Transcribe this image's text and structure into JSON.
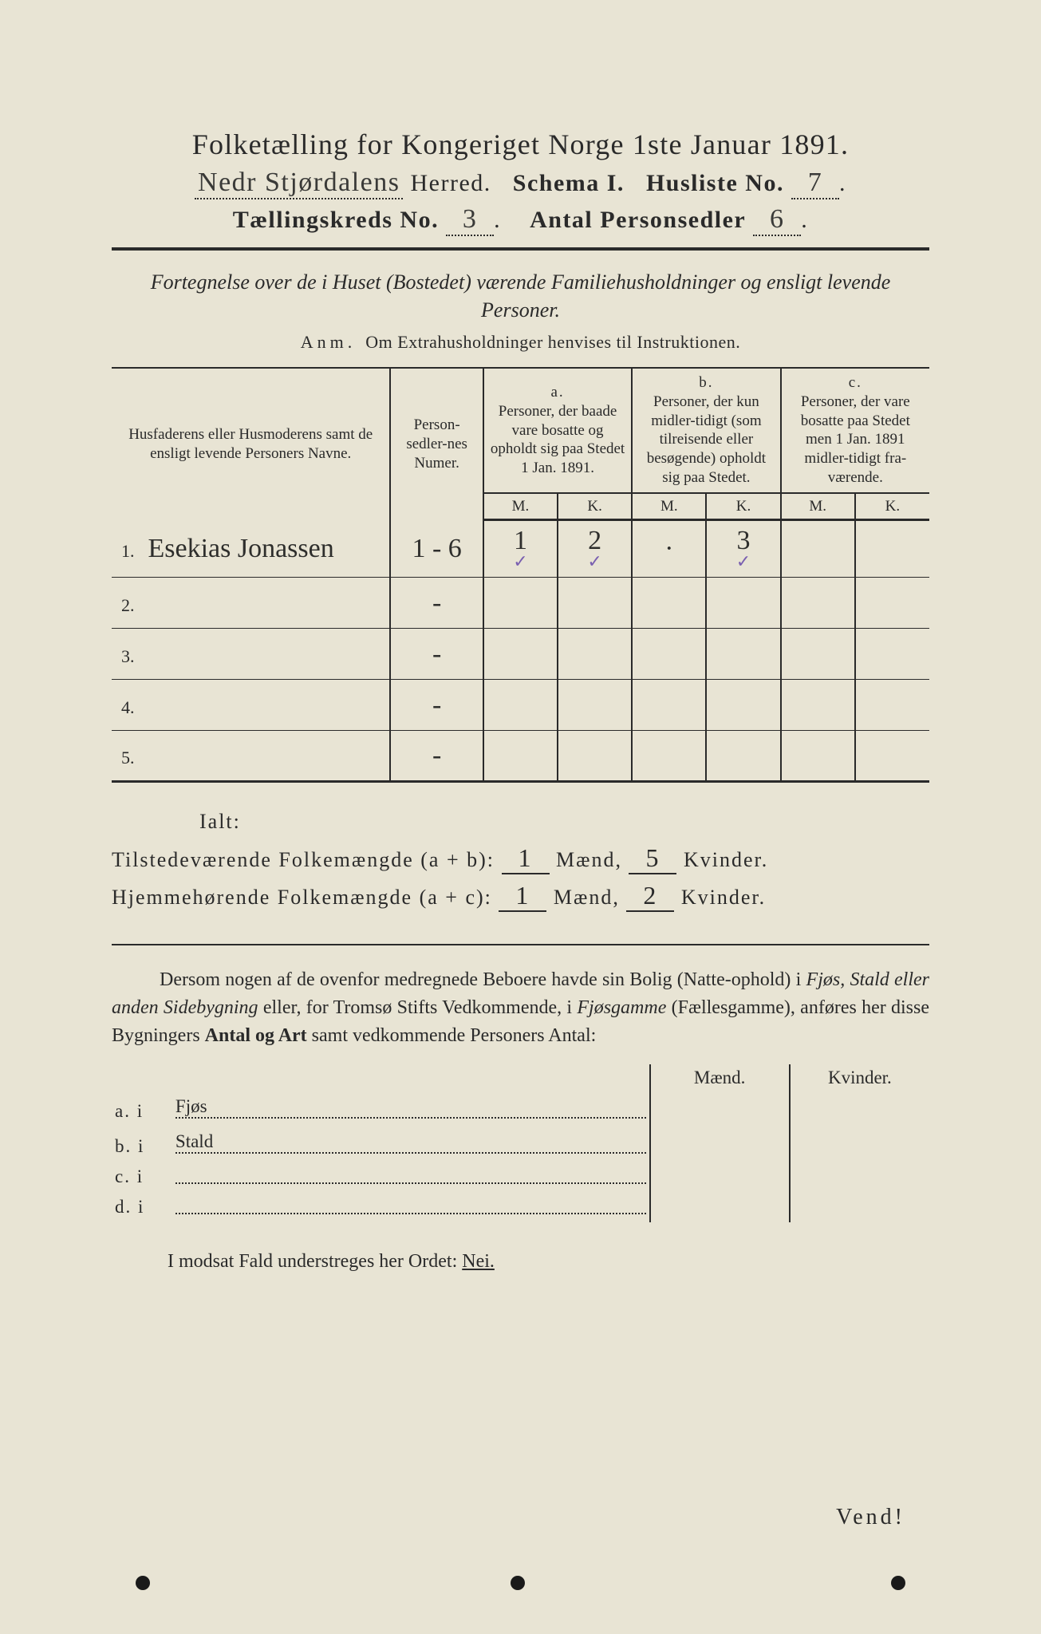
{
  "header": {
    "title": "Folketælling for Kongeriget Norge 1ste Januar 1891.",
    "herred_hand": "Nedr Stjørdalens",
    "herred_label": "Herred.",
    "schema_label": "Schema I.",
    "husliste_label": "Husliste No.",
    "husliste_no": "7",
    "kreds_label": "Tællingskreds No.",
    "kreds_no": "3",
    "antal_label": "Antal Personsedler",
    "antal_no": "6"
  },
  "subtitle": "Fortegnelse over de i Huset (Bostedet) værende Familiehusholdninger og ensligt levende Personer.",
  "anm_lead": "Anm.",
  "anm_text": "Om Extrahusholdninger henvises til Instruktionen.",
  "table": {
    "col_name": "Husfaderens eller Husmoderens samt de ensligt levende Personers Navne.",
    "col_num": "Person-sedler-nes Numer.",
    "col_a_head": "a.",
    "col_a": "Personer, der baade vare bosatte og opholdt sig paa Stedet 1 Jan. 1891.",
    "col_b_head": "b.",
    "col_b": "Personer, der kun midler-tidigt (som tilreisende eller besøgende) opholdt sig paa Stedet.",
    "col_c_head": "c.",
    "col_c": "Personer, der vare bosatte paa Stedet men 1 Jan. 1891 midler-tidigt fra-værende.",
    "mk_m": "M.",
    "mk_k": "K.",
    "rows": [
      {
        "n": "1.",
        "name": "Esekias Jonassen",
        "num": "1 - 6",
        "am": "1",
        "ak": "2",
        "bm": "·",
        "bk": "3",
        "cm": "",
        "ck": "",
        "tick": true
      },
      {
        "n": "2.",
        "name": "",
        "num": "-",
        "am": "",
        "ak": "",
        "bm": "",
        "bk": "",
        "cm": "",
        "ck": ""
      },
      {
        "n": "3.",
        "name": "",
        "num": "-",
        "am": "",
        "ak": "",
        "bm": "",
        "bk": "",
        "cm": "",
        "ck": ""
      },
      {
        "n": "4.",
        "name": "",
        "num": "-",
        "am": "",
        "ak": "",
        "bm": "",
        "bk": "",
        "cm": "",
        "ck": ""
      },
      {
        "n": "5.",
        "name": "",
        "num": "-",
        "am": "",
        "ak": "",
        "bm": "",
        "bk": "",
        "cm": "",
        "ck": ""
      }
    ]
  },
  "totals": {
    "ialt": "Ialt:",
    "line1_label": "Tilstedeværende Folkemængde (a + b):",
    "line2_label": "Hjemmehørende Folkemængde (a + c):",
    "maend": "Mænd,",
    "kvinder": "Kvinder.",
    "ab_m": "1",
    "ab_k": "5",
    "ac_m": "1",
    "ac_k": "2"
  },
  "para": {
    "t1": "Dersom nogen af de ovenfor medregnede Beboere havde sin Bolig (Natte-ophold) i ",
    "em1": "Fjøs, Stald eller anden Sidebygning",
    "t2": " eller, for Tromsø Stifts Vedkommende, i ",
    "em2": "Fjøsgamme",
    "t3": " (Fællesgamme), anføres her disse Bygningers ",
    "b1": "Antal og Art",
    "t4": " samt vedkommende Personers Antal:"
  },
  "side": {
    "head_m": "Mænd.",
    "head_k": "Kvinder.",
    "rows": [
      {
        "lab": "a.  i",
        "type": "Fjøs"
      },
      {
        "lab": "b.  i",
        "type": "Stald"
      },
      {
        "lab": "c.  i",
        "type": ""
      },
      {
        "lab": "d.  i",
        "type": ""
      }
    ]
  },
  "modsat_pre": "I modsat Fald understreges her Ordet: ",
  "modsat_word": "Nei.",
  "vend": "Vend!"
}
